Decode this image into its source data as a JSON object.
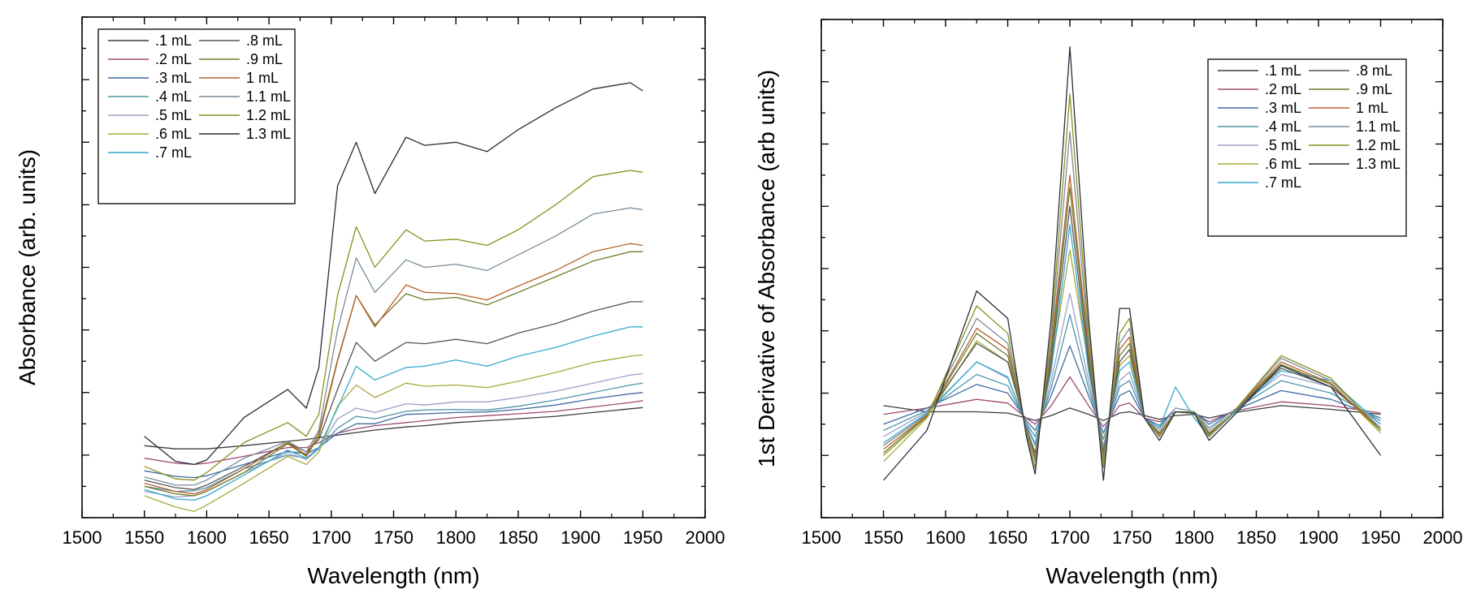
{
  "chart_data": [
    {
      "type": "line",
      "title": "",
      "xlabel": "Wavelength (nm)",
      "ylabel": "Absorbance (arb. units)",
      "xlim": [
        1500,
        2000
      ],
      "ylim": [
        0,
        8
      ],
      "xticks": [
        1500,
        1550,
        1600,
        1650,
        1700,
        1750,
        1800,
        1850,
        1900,
        1950,
        2000
      ],
      "y_tick_labels_shown": false,
      "grid": false,
      "legend_position": "top-left",
      "legend_columns": 2,
      "x": [
        1550,
        1575,
        1590,
        1600,
        1630,
        1665,
        1680,
        1690,
        1705,
        1720,
        1735,
        1760,
        1775,
        1800,
        1825,
        1850,
        1880,
        1910,
        1940,
        1950
      ],
      "series": [
        {
          "name": ".1 mL",
          "color": "#3c3c3c",
          "values": [
            1.15,
            1.1,
            1.1,
            1.1,
            1.15,
            1.22,
            1.25,
            1.28,
            1.32,
            1.36,
            1.4,
            1.45,
            1.47,
            1.52,
            1.55,
            1.58,
            1.62,
            1.68,
            1.74,
            1.76
          ]
        },
        {
          "name": ".2 mL",
          "color": "#9c4a70",
          "values": [
            0.95,
            0.87,
            0.85,
            0.87,
            0.98,
            1.12,
            1.12,
            1.2,
            1.35,
            1.42,
            1.47,
            1.52,
            1.55,
            1.6,
            1.63,
            1.66,
            1.7,
            1.77,
            1.84,
            1.87
          ]
        },
        {
          "name": ".3 mL",
          "color": "#3d6aa0",
          "values": [
            0.75,
            0.66,
            0.64,
            0.67,
            0.85,
            1.06,
            1.02,
            1.12,
            1.35,
            1.5,
            1.5,
            1.65,
            1.66,
            1.68,
            1.69,
            1.73,
            1.8,
            1.9,
            1.98,
            2.0
          ]
        },
        {
          "name": ".4 mL",
          "color": "#4f95a8",
          "values": [
            0.5,
            0.42,
            0.43,
            0.48,
            0.78,
            1.0,
            0.95,
            1.1,
            1.43,
            1.62,
            1.58,
            1.7,
            1.72,
            1.73,
            1.72,
            1.78,
            1.88,
            2.0,
            2.12,
            2.15
          ]
        },
        {
          "name": ".5 mL",
          "color": "#9b9fc9",
          "values": [
            0.42,
            0.33,
            0.35,
            0.42,
            0.72,
            1.04,
            0.93,
            1.1,
            1.58,
            1.75,
            1.68,
            1.82,
            1.8,
            1.85,
            1.85,
            1.92,
            2.02,
            2.15,
            2.28,
            2.3
          ]
        },
        {
          "name": ".6 mL",
          "color": "#a8a83a",
          "values": [
            0.35,
            0.17,
            0.1,
            0.2,
            0.55,
            0.98,
            0.85,
            1.05,
            1.78,
            2.12,
            1.92,
            2.15,
            2.1,
            2.12,
            2.08,
            2.18,
            2.32,
            2.48,
            2.58,
            2.6
          ]
        },
        {
          "name": ".7 mL",
          "color": "#36a9cc",
          "values": [
            0.45,
            0.3,
            0.28,
            0.35,
            0.68,
            1.08,
            0.95,
            1.12,
            1.75,
            2.42,
            2.2,
            2.4,
            2.42,
            2.52,
            2.42,
            2.58,
            2.72,
            2.9,
            3.05,
            3.05
          ]
        },
        {
          "name": ".8 mL",
          "color": "#555555",
          "values": [
            0.6,
            0.48,
            0.45,
            0.52,
            0.82,
            1.2,
            1.05,
            1.25,
            2.05,
            2.8,
            2.5,
            2.8,
            2.78,
            2.85,
            2.78,
            2.95,
            3.1,
            3.3,
            3.45,
            3.45
          ]
        },
        {
          "name": ".9 mL",
          "color": "#6e7a2a",
          "values": [
            0.5,
            0.38,
            0.35,
            0.42,
            0.72,
            1.18,
            0.98,
            1.3,
            2.5,
            3.55,
            3.08,
            3.58,
            3.48,
            3.52,
            3.4,
            3.6,
            3.85,
            4.1,
            4.25,
            4.25
          ]
        },
        {
          "name": "1 mL",
          "color": "#b8602a",
          "values": [
            0.55,
            0.42,
            0.38,
            0.45,
            0.78,
            1.2,
            1.0,
            1.35,
            2.52,
            3.55,
            3.05,
            3.72,
            3.6,
            3.58,
            3.48,
            3.7,
            3.95,
            4.25,
            4.38,
            4.35
          ]
        },
        {
          "name": "1.1 mL",
          "color": "#7a8c99",
          "values": [
            0.65,
            0.52,
            0.52,
            0.6,
            0.95,
            1.22,
            1.05,
            1.4,
            3.0,
            4.15,
            3.6,
            4.12,
            4.0,
            4.05,
            3.95,
            4.2,
            4.5,
            4.85,
            4.95,
            4.92
          ]
        },
        {
          "name": "1.2 mL",
          "color": "#8c8f1f",
          "values": [
            0.82,
            0.62,
            0.6,
            0.72,
            1.2,
            1.52,
            1.3,
            1.65,
            3.55,
            4.65,
            4.0,
            4.6,
            4.42,
            4.45,
            4.35,
            4.6,
            5.0,
            5.45,
            5.55,
            5.52
          ]
        },
        {
          "name": "1.3 mL",
          "color": "#2a2a3a",
          "values": [
            1.3,
            0.9,
            0.85,
            0.92,
            1.6,
            2.05,
            1.75,
            2.4,
            5.3,
            6.0,
            5.18,
            6.08,
            5.95,
            6.0,
            5.85,
            6.2,
            6.55,
            6.85,
            6.95,
            6.82
          ]
        }
      ]
    },
    {
      "type": "line",
      "title": "",
      "xlabel": "Wavelength (nm)",
      "ylabel": "1st Derivative of Absorbance (arb units)",
      "xlim": [
        1500,
        2000
      ],
      "ylim": [
        -0.8,
        3.2
      ],
      "xticks": [
        1500,
        1550,
        1600,
        1650,
        1700,
        1750,
        1800,
        1850,
        1900,
        1950,
        2000
      ],
      "y_tick_labels_shown": false,
      "grid": false,
      "legend_position": "top-right",
      "legend_columns": 2,
      "x": [
        1550,
        1585,
        1625,
        1650,
        1665,
        1672,
        1685,
        1700,
        1715,
        1727,
        1740,
        1748,
        1760,
        1772,
        1785,
        1800,
        1812,
        1830,
        1870,
        1910,
        1950
      ],
      "series": [
        {
          "name": ".1 mL",
          "color": "#3c3c3c",
          "values": [
            0.1,
            0.05,
            0.05,
            0.04,
            0.0,
            -0.02,
            0.02,
            0.08,
            0.03,
            -0.02,
            0.04,
            0.05,
            0.02,
            -0.01,
            0.02,
            0.03,
            0.0,
            0.04,
            0.1,
            0.07,
            0.03
          ]
        },
        {
          "name": ".2 mL",
          "color": "#9c4a70",
          "values": [
            0.03,
            0.08,
            0.15,
            0.12,
            0.0,
            -0.05,
            0.1,
            0.33,
            0.1,
            -0.07,
            0.1,
            0.12,
            0.0,
            -0.03,
            0.05,
            0.04,
            -0.03,
            0.05,
            0.13,
            0.1,
            0.04
          ]
        },
        {
          "name": ".3 mL",
          "color": "#3d6aa0",
          "values": [
            -0.05,
            0.08,
            0.27,
            0.2,
            -0.02,
            -0.1,
            0.18,
            0.58,
            0.18,
            -0.12,
            0.18,
            0.22,
            0.0,
            -0.06,
            0.08,
            0.05,
            -0.05,
            0.05,
            0.22,
            0.15,
            0.0
          ]
        },
        {
          "name": ".4 mL",
          "color": "#4f95a8",
          "values": [
            -0.1,
            0.06,
            0.35,
            0.26,
            -0.04,
            -0.15,
            0.24,
            0.83,
            0.24,
            -0.17,
            0.25,
            0.3,
            0.0,
            -0.08,
            0.08,
            0.05,
            -0.08,
            0.05,
            0.3,
            0.2,
            -0.02
          ]
        },
        {
          "name": ".5 mL",
          "color": "#9b9fc9",
          "values": [
            -0.15,
            0.05,
            0.45,
            0.32,
            -0.05,
            -0.2,
            0.3,
            1.0,
            0.3,
            -0.22,
            0.3,
            0.37,
            0.0,
            -0.1,
            0.08,
            0.05,
            -0.1,
            0.05,
            0.35,
            0.25,
            -0.05
          ]
        },
        {
          "name": ".6 mL",
          "color": "#a8a83a",
          "values": [
            -0.35,
            0.0,
            0.62,
            0.45,
            -0.08,
            -0.3,
            0.42,
            1.35,
            0.42,
            -0.3,
            0.42,
            0.5,
            0.0,
            -0.12,
            0.05,
            0.05,
            -0.12,
            0.03,
            0.42,
            0.28,
            -0.12
          ]
        },
        {
          "name": ".7 mL",
          "color": "#36a9cc",
          "values": [
            -0.2,
            0.04,
            0.45,
            0.33,
            -0.06,
            -0.22,
            0.38,
            1.55,
            0.38,
            -0.25,
            0.38,
            0.45,
            0.0,
            -0.08,
            0.25,
            0.0,
            -0.15,
            0.02,
            0.38,
            0.3,
            -0.05
          ]
        },
        {
          "name": ".8 mL",
          "color": "#555555",
          "values": [
            -0.22,
            0.03,
            0.6,
            0.45,
            -0.08,
            -0.28,
            0.45,
            1.7,
            0.45,
            -0.28,
            0.45,
            0.55,
            0.0,
            -0.12,
            0.05,
            0.04,
            -0.12,
            0.03,
            0.4,
            0.25,
            -0.08
          ]
        },
        {
          "name": ".9 mL",
          "color": "#6e7a2a",
          "values": [
            -0.28,
            0.02,
            0.68,
            0.5,
            -0.09,
            -0.3,
            0.5,
            1.85,
            0.5,
            -0.3,
            0.5,
            0.6,
            0.0,
            -0.12,
            0.05,
            0.04,
            -0.12,
            0.03,
            0.43,
            0.27,
            -0.1
          ]
        },
        {
          "name": "1 mL",
          "color": "#b8602a",
          "values": [
            -0.25,
            0.02,
            0.72,
            0.55,
            -0.09,
            -0.32,
            0.55,
            1.95,
            0.55,
            -0.32,
            0.55,
            0.65,
            0.0,
            -0.13,
            0.05,
            0.04,
            -0.13,
            0.03,
            0.45,
            0.28,
            -0.1
          ]
        },
        {
          "name": "1.1 mL",
          "color": "#7a8c99",
          "values": [
            -0.22,
            0.03,
            0.8,
            0.6,
            -0.1,
            -0.35,
            0.6,
            2.3,
            0.6,
            -0.35,
            0.6,
            0.72,
            0.0,
            -0.14,
            0.05,
            0.04,
            -0.14,
            0.03,
            0.48,
            0.3,
            -0.08
          ]
        },
        {
          "name": "1.2 mL",
          "color": "#8c8f1f",
          "values": [
            -0.3,
            0.01,
            0.9,
            0.68,
            -0.12,
            -0.4,
            0.68,
            2.6,
            0.68,
            -0.4,
            0.68,
            0.8,
            0.0,
            -0.15,
            0.05,
            0.04,
            -0.15,
            0.03,
            0.5,
            0.32,
            -0.1
          ]
        },
        {
          "name": "1.3 mL",
          "color": "#2a2a3a",
          "values": [
            -0.5,
            -0.1,
            1.02,
            0.8,
            -0.15,
            -0.45,
            0.8,
            2.98,
            0.8,
            -0.5,
            0.88,
            0.88,
            0.0,
            -0.18,
            0.05,
            0.04,
            -0.18,
            0.0,
            0.42,
            0.25,
            -0.3
          ]
        }
      ]
    }
  ]
}
